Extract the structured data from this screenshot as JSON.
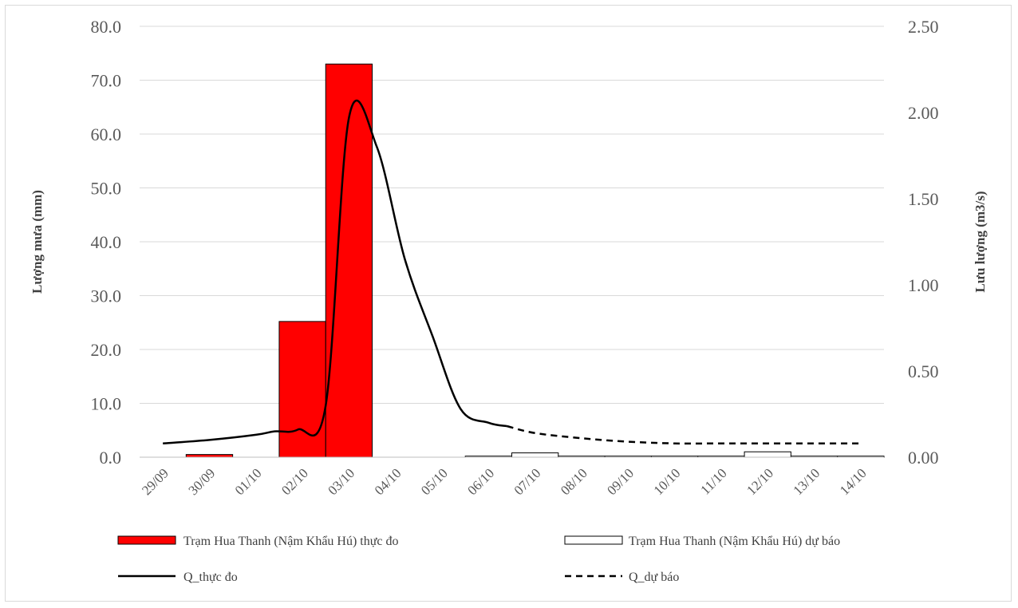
{
  "chart_data": {
    "type": "bar",
    "categories": [
      "29/09",
      "30/09",
      "01/10",
      "02/10",
      "03/10",
      "04/10",
      "05/10",
      "06/10",
      "07/10",
      "08/10",
      "09/10",
      "10/10",
      "11/10",
      "12/10",
      "13/10",
      "14/10"
    ],
    "y_left": {
      "label": "Lượng mưa (mm)",
      "ylim": [
        0,
        80
      ],
      "ticks": [
        "0.0",
        "10.0",
        "20.0",
        "30.0",
        "40.0",
        "50.0",
        "60.0",
        "70.0",
        "80.0"
      ]
    },
    "y_right": {
      "label": "Lưu lượng (m3/s)",
      "ylim": [
        0,
        2.5
      ],
      "ticks": [
        "0.00",
        "0.50",
        "1.00",
        "1.50",
        "2.00",
        "2.50"
      ]
    },
    "series": [
      {
        "name": "Trạm Hua Thanh (Nậm Khẩu Hú) thực đo",
        "kind": "bar",
        "axis": "left",
        "fill": "#ff0000",
        "stroke": "#000000",
        "values": [
          0,
          0.5,
          0,
          25.2,
          73.0,
          0,
          0,
          null,
          null,
          null,
          null,
          null,
          null,
          null,
          null,
          null
        ]
      },
      {
        "name": "Trạm Hua Thanh (Nậm Khẩu Hú) dự báo",
        "kind": "bar",
        "axis": "left",
        "fill": "#ffffff",
        "stroke": "#000000",
        "values": [
          null,
          null,
          null,
          null,
          null,
          null,
          null,
          0.2,
          0.8,
          0.2,
          0.2,
          0.2,
          0.2,
          1.0,
          0.2,
          0.2
        ]
      },
      {
        "name": "Q_thực đo",
        "kind": "line",
        "axis": "right",
        "stroke": "#000000",
        "dash": "none",
        "x": [
          0,
          1,
          2,
          2.4,
          2.9,
          3.5,
          4.0,
          4.6,
          5.2,
          5.8,
          6.4,
          7.0,
          7.4
        ],
        "values": [
          0.08,
          0.1,
          0.13,
          0.15,
          0.16,
          0.3,
          1.97,
          1.8,
          1.15,
          0.7,
          0.28,
          0.2,
          0.18
        ]
      },
      {
        "name": "Q_dự báo",
        "kind": "line",
        "axis": "right",
        "stroke": "#000000",
        "dash": "8,6",
        "x": [
          7.4,
          8,
          9,
          10,
          11,
          12,
          13,
          14,
          15
        ],
        "values": [
          0.18,
          0.14,
          0.11,
          0.09,
          0.08,
          0.08,
          0.08,
          0.08,
          0.08
        ]
      }
    ],
    "grid": true,
    "legend": "bottom"
  }
}
